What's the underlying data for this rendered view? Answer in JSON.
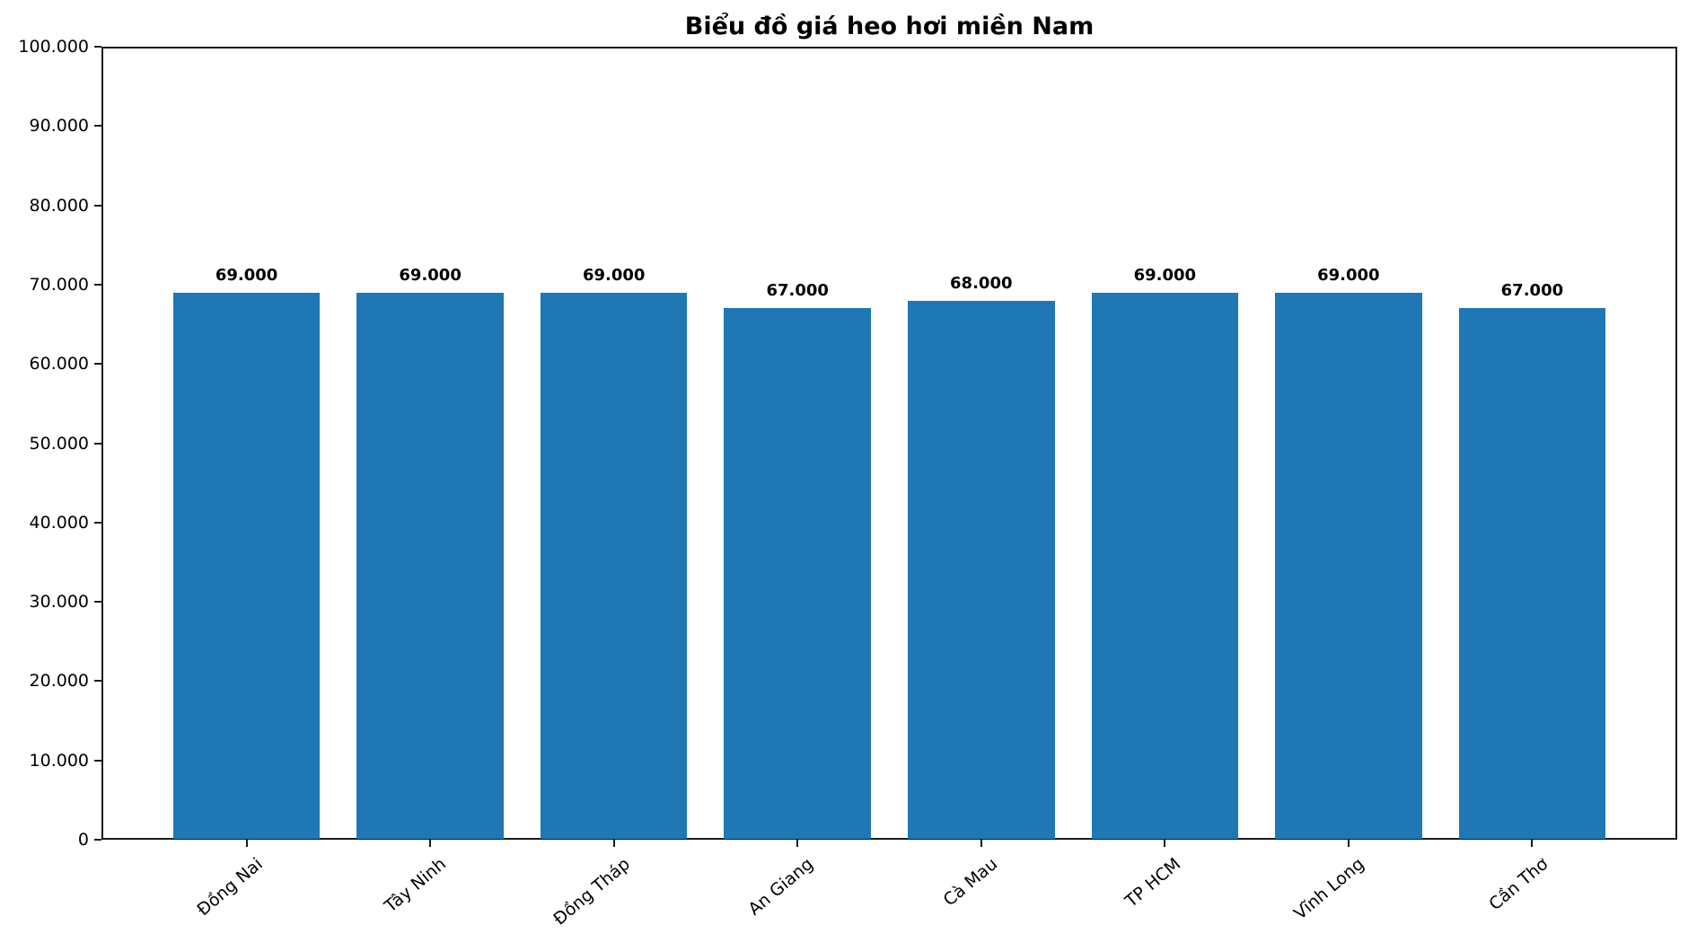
{
  "chart_data": {
    "type": "bar",
    "title": "Biểu đồ giá heo hơi miền Nam",
    "xlabel": "",
    "ylabel": "",
    "grid": false,
    "legend": null,
    "bar_color": "#1f77b4",
    "axis_color": "#1a1a1a",
    "ylim": [
      0,
      100000
    ],
    "categories": [
      "Đồng Nai",
      "Tây Ninh",
      "Đồng Tháp",
      "An Giang",
      "Cà Mau",
      "TP HCM",
      "Vĩnh Long",
      "Cần Thơ"
    ],
    "values": [
      69000,
      69000,
      69000,
      67000,
      68000,
      69000,
      69000,
      67000
    ],
    "value_labels": [
      "69.000",
      "69.000",
      "69.000",
      "67.000",
      "68.000",
      "69.000",
      "69.000",
      "67.000"
    ],
    "y_ticks": [
      {
        "value": 0,
        "label": "0"
      },
      {
        "value": 10000,
        "label": "10.000"
      },
      {
        "value": 20000,
        "label": "20.000"
      },
      {
        "value": 30000,
        "label": "30.000"
      },
      {
        "value": 40000,
        "label": "40.000"
      },
      {
        "value": 50000,
        "label": "50.000"
      },
      {
        "value": 60000,
        "label": "60.000"
      },
      {
        "value": 70000,
        "label": "70.000"
      },
      {
        "value": 80000,
        "label": "80.000"
      },
      {
        "value": 90000,
        "label": "90.000"
      },
      {
        "value": 100000,
        "label": "100.000"
      }
    ]
  }
}
